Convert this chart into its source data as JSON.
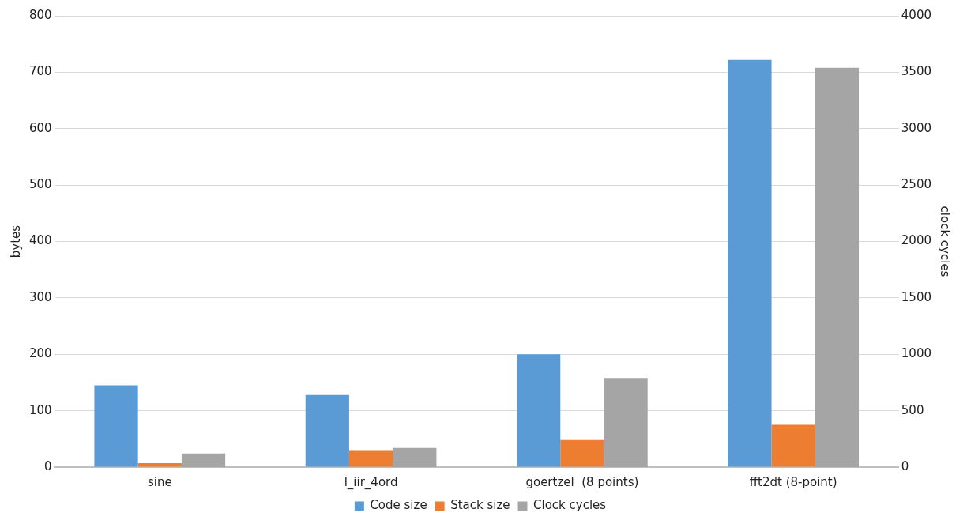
{
  "chart_data": {
    "type": "bar",
    "categories": [
      "sine",
      "l_iir_4ord",
      "goertzel  (8 points)",
      "fft2dt (8-point)"
    ],
    "series": [
      {
        "name": "Code size",
        "color": "#5b9bd5",
        "values": [
          145,
          128,
          200,
          722
        ]
      },
      {
        "name": "Stack size",
        "color": "#ed7d31",
        "values": [
          7,
          30,
          48,
          75
        ]
      },
      {
        "name": "Clock cycles",
        "color": "#a5a5a5",
        "values": [
          120,
          170,
          790,
          3540
        ],
        "axis": "y2"
      }
    ],
    "ylabel": "bytes",
    "y2label": "clock cycles",
    "ylim": [
      0,
      800
    ],
    "yticks": [
      0,
      100,
      200,
      300,
      400,
      500,
      600,
      700,
      800
    ],
    "y2lim": [
      0,
      4000
    ],
    "y2ticks": [
      0,
      500,
      1000,
      1500,
      2000,
      2500,
      3000,
      3500,
      4000
    ],
    "grid": "y",
    "legend": "bottom"
  }
}
